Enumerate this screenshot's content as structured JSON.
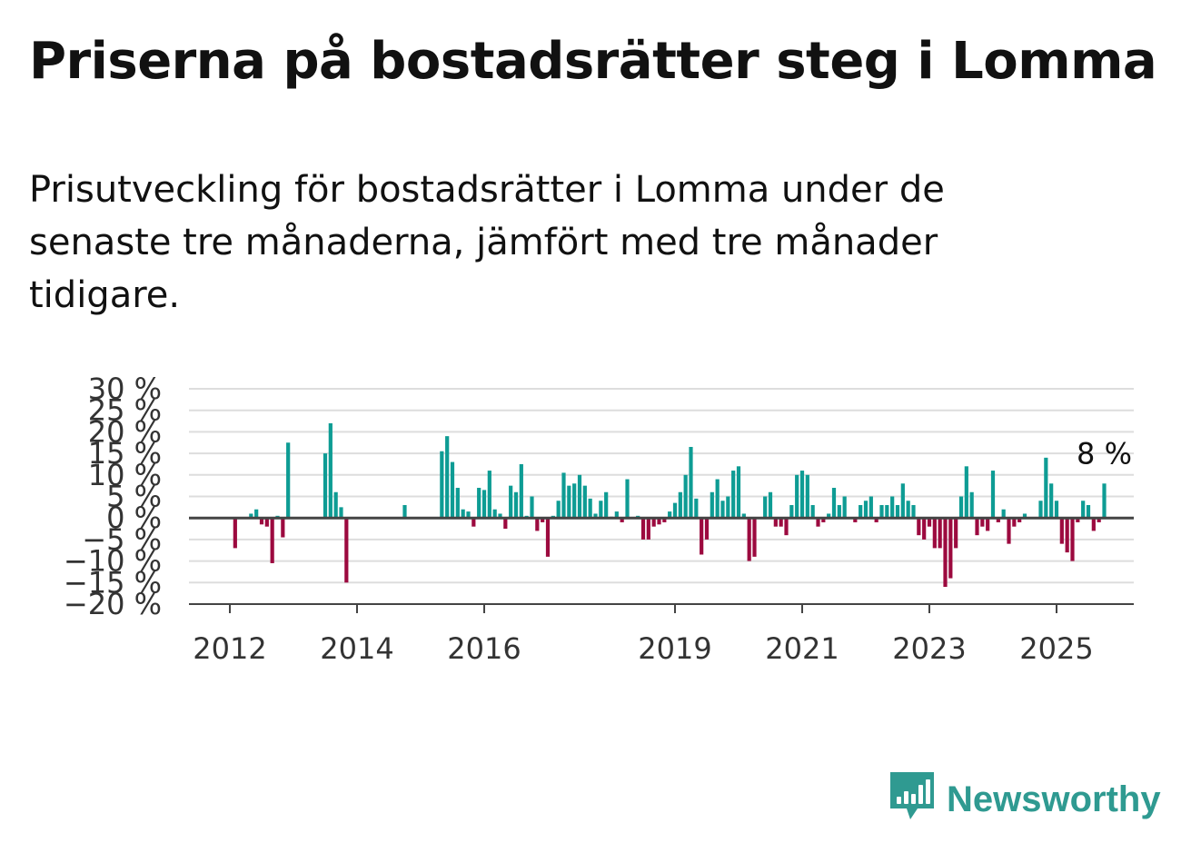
{
  "title": "Priserna på bostadsrätter steg i Lomma",
  "subtitle": "Prisutveckling för bostadsrätter i Lomma under de senaste tre månaderna, jämfört med tre månader tidigare.",
  "logo_text": "Newsworthy",
  "colors": {
    "positive": "#0e9c94",
    "negative": "#9c0a3f",
    "grid": "#dddddd",
    "axis": "#444444",
    "logo": "#2f9a91"
  },
  "chart_data": {
    "type": "bar",
    "ylim": [
      -20,
      30
    ],
    "yticks": [
      30,
      25,
      20,
      15,
      10,
      5,
      0,
      -5,
      -10,
      -15,
      -20
    ],
    "ytick_labels": [
      "30 %",
      "25 %",
      "20 %",
      "15 %",
      "10 %",
      "5 %",
      "0 %",
      "−5 %",
      "−10 %",
      "−15 %",
      "−20 %"
    ],
    "xtick_labels": [
      {
        "label": "2012",
        "date": "2012-01"
      },
      {
        "label": "2014",
        "date": "2014-01"
      },
      {
        "label": "2016",
        "date": "2016-01"
      },
      {
        "label": "2019",
        "date": "2019-01"
      },
      {
        "label": "2021",
        "date": "2021-01"
      },
      {
        "label": "2023",
        "date": "2023-01"
      },
      {
        "label": "2025",
        "date": "2025-01"
      }
    ],
    "last_label": "8 %",
    "series": [
      {
        "points": [
          {
            "x": "2012-02",
            "y": -7
          },
          {
            "x": "2012-05",
            "y": 1
          },
          {
            "x": "2012-06",
            "y": 2
          },
          {
            "x": "2012-07",
            "y": -1.5
          },
          {
            "x": "2012-08",
            "y": -2
          },
          {
            "x": "2012-09",
            "y": -10.5
          },
          {
            "x": "2012-10",
            "y": 0.5
          },
          {
            "x": "2012-11",
            "y": -4.5
          },
          {
            "x": "2012-12",
            "y": 17.5
          },
          {
            "x": "2013-07",
            "y": 15
          },
          {
            "x": "2013-08",
            "y": 22
          },
          {
            "x": "2013-09",
            "y": 6
          },
          {
            "x": "2013-10",
            "y": 2.5
          },
          {
            "x": "2013-11",
            "y": -15
          },
          {
            "x": "2014-10",
            "y": 3
          },
          {
            "x": "2015-05",
            "y": 15.5
          },
          {
            "x": "2015-06",
            "y": 19
          },
          {
            "x": "2015-07",
            "y": 13
          },
          {
            "x": "2015-08",
            "y": 7
          },
          {
            "x": "2015-09",
            "y": 2
          },
          {
            "x": "2015-10",
            "y": 1.5
          },
          {
            "x": "2015-11",
            "y": -2
          },
          {
            "x": "2015-12",
            "y": 7
          },
          {
            "x": "2016-01",
            "y": 6.5
          },
          {
            "x": "2016-02",
            "y": 11
          },
          {
            "x": "2016-03",
            "y": 2
          },
          {
            "x": "2016-04",
            "y": 1
          },
          {
            "x": "2016-05",
            "y": -2.5
          },
          {
            "x": "2016-06",
            "y": 7.5
          },
          {
            "x": "2016-07",
            "y": 6
          },
          {
            "x": "2016-08",
            "y": 12.5
          },
          {
            "x": "2016-09",
            "y": 0.5
          },
          {
            "x": "2016-10",
            "y": 5
          },
          {
            "x": "2016-11",
            "y": -3
          },
          {
            "x": "2016-12",
            "y": -1
          },
          {
            "x": "2017-01",
            "y": -9
          },
          {
            "x": "2017-02",
            "y": 0.5
          },
          {
            "x": "2017-03",
            "y": 4
          },
          {
            "x": "2017-04",
            "y": 10.5
          },
          {
            "x": "2017-05",
            "y": 7.5
          },
          {
            "x": "2017-06",
            "y": 8
          },
          {
            "x": "2017-07",
            "y": 10
          },
          {
            "x": "2017-08",
            "y": 7.5
          },
          {
            "x": "2017-09",
            "y": 4.5
          },
          {
            "x": "2017-10",
            "y": 1
          },
          {
            "x": "2017-11",
            "y": 4
          },
          {
            "x": "2017-12",
            "y": 6
          },
          {
            "x": "2018-01",
            "y": 0.3
          },
          {
            "x": "2018-02",
            "y": 1.5
          },
          {
            "x": "2018-03",
            "y": -1
          },
          {
            "x": "2018-04",
            "y": 9
          },
          {
            "x": "2018-05",
            "y": -0.2
          },
          {
            "x": "2018-06",
            "y": 0.5
          },
          {
            "x": "2018-07",
            "y": -5
          },
          {
            "x": "2018-08",
            "y": -5
          },
          {
            "x": "2018-09",
            "y": -2
          },
          {
            "x": "2018-10",
            "y": -1.5
          },
          {
            "x": "2018-11",
            "y": -1
          },
          {
            "x": "2018-12",
            "y": 1.5
          },
          {
            "x": "2019-01",
            "y": 3.5
          },
          {
            "x": "2019-02",
            "y": 6
          },
          {
            "x": "2019-03",
            "y": 10
          },
          {
            "x": "2019-04",
            "y": 16.5
          },
          {
            "x": "2019-05",
            "y": 4.5
          },
          {
            "x": "2019-06",
            "y": -8.5
          },
          {
            "x": "2019-07",
            "y": -5
          },
          {
            "x": "2019-08",
            "y": 6
          },
          {
            "x": "2019-09",
            "y": 9
          },
          {
            "x": "2019-10",
            "y": 4
          },
          {
            "x": "2019-11",
            "y": 5
          },
          {
            "x": "2019-12",
            "y": 11
          },
          {
            "x": "2020-01",
            "y": 12
          },
          {
            "x": "2020-02",
            "y": 1
          },
          {
            "x": "2020-03",
            "y": -10
          },
          {
            "x": "2020-04",
            "y": -9
          },
          {
            "x": "2020-05",
            "y": 0
          },
          {
            "x": "2020-06",
            "y": 5
          },
          {
            "x": "2020-07",
            "y": 6
          },
          {
            "x": "2020-08",
            "y": -2
          },
          {
            "x": "2020-09",
            "y": -2
          },
          {
            "x": "2020-10",
            "y": -4
          },
          {
            "x": "2020-11",
            "y": 3
          },
          {
            "x": "2020-12",
            "y": 10
          },
          {
            "x": "2021-01",
            "y": 11
          },
          {
            "x": "2021-02",
            "y": 10
          },
          {
            "x": "2021-03",
            "y": 3
          },
          {
            "x": "2021-04",
            "y": -2
          },
          {
            "x": "2021-05",
            "y": -1
          },
          {
            "x": "2021-06",
            "y": 1
          },
          {
            "x": "2021-07",
            "y": 7
          },
          {
            "x": "2021-08",
            "y": 3
          },
          {
            "x": "2021-09",
            "y": 5
          },
          {
            "x": "2021-10",
            "y": 0
          },
          {
            "x": "2021-11",
            "y": -1
          },
          {
            "x": "2021-12",
            "y": 3
          },
          {
            "x": "2022-01",
            "y": 4
          },
          {
            "x": "2022-02",
            "y": 5
          },
          {
            "x": "2022-03",
            "y": -1
          },
          {
            "x": "2022-04",
            "y": 3
          },
          {
            "x": "2022-05",
            "y": 3
          },
          {
            "x": "2022-06",
            "y": 5
          },
          {
            "x": "2022-07",
            "y": 3
          },
          {
            "x": "2022-08",
            "y": 8
          },
          {
            "x": "2022-09",
            "y": 4
          },
          {
            "x": "2022-10",
            "y": 3
          },
          {
            "x": "2022-11",
            "y": -4
          },
          {
            "x": "2022-12",
            "y": -5
          },
          {
            "x": "2023-01",
            "y": -2
          },
          {
            "x": "2023-02",
            "y": -7
          },
          {
            "x": "2023-03",
            "y": -7
          },
          {
            "x": "2023-04",
            "y": -16
          },
          {
            "x": "2023-05",
            "y": -14
          },
          {
            "x": "2023-06",
            "y": -7
          },
          {
            "x": "2023-07",
            "y": 5
          },
          {
            "x": "2023-08",
            "y": 12
          },
          {
            "x": "2023-09",
            "y": 6
          },
          {
            "x": "2023-10",
            "y": -4
          },
          {
            "x": "2023-11",
            "y": -2
          },
          {
            "x": "2023-12",
            "y": -3
          },
          {
            "x": "2024-01",
            "y": 11
          },
          {
            "x": "2024-02",
            "y": -1
          },
          {
            "x": "2024-03",
            "y": 2
          },
          {
            "x": "2024-04",
            "y": -6
          },
          {
            "x": "2024-05",
            "y": -2
          },
          {
            "x": "2024-06",
            "y": -1
          },
          {
            "x": "2024-07",
            "y": 1
          },
          {
            "x": "2024-08",
            "y": 0
          },
          {
            "x": "2024-09",
            "y": 0
          },
          {
            "x": "2024-10",
            "y": 4
          },
          {
            "x": "2024-11",
            "y": 14
          },
          {
            "x": "2024-12",
            "y": 8
          },
          {
            "x": "2025-01",
            "y": 4
          },
          {
            "x": "2025-02",
            "y": -6
          },
          {
            "x": "2025-03",
            "y": -8
          },
          {
            "x": "2025-04",
            "y": -10
          },
          {
            "x": "2025-05",
            "y": -1
          },
          {
            "x": "2025-06",
            "y": 4
          },
          {
            "x": "2025-07",
            "y": 3
          },
          {
            "x": "2025-08",
            "y": -3
          },
          {
            "x": "2025-09",
            "y": -1
          },
          {
            "x": "2025-10",
            "y": 8
          }
        ]
      }
    ]
  }
}
